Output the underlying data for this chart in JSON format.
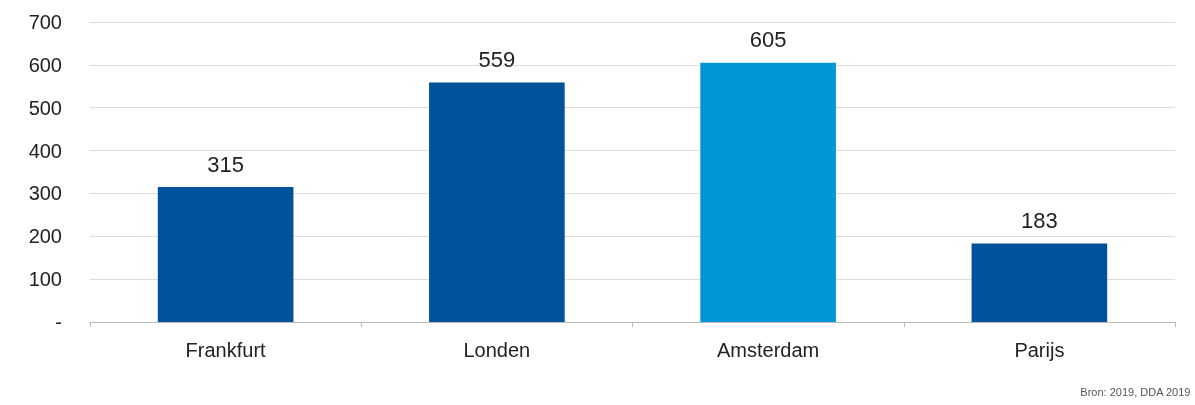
{
  "chart_data": {
    "type": "bar",
    "categories": [
      "Frankfurt",
      "Londen",
      "Amsterdam",
      "Parijs"
    ],
    "values": [
      315,
      559,
      605,
      183
    ],
    "colors": [
      "#00529b",
      "#00529b",
      "#0096d6",
      "#00529b"
    ],
    "data_labels": true,
    "ylim": [
      0,
      700
    ],
    "yticks": [
      {
        "value": 0,
        "label": "-"
      },
      100,
      200,
      300,
      400,
      500,
      600,
      700
    ],
    "grid": "y",
    "annotations": [
      "Bron: 2019, DDA 2019"
    ]
  }
}
